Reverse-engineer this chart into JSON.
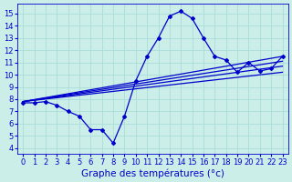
{
  "background_color": "#cceee8",
  "grid_color": "#aaddd8",
  "line_color": "#0000cc",
  "marker": "D",
  "markersize": 2.0,
  "linewidth": 0.9,
  "xlabel": "Graphe des températures (°c)",
  "xlabel_fontsize": 7.5,
  "tick_fontsize": 6.0,
  "xlim": [
    -0.5,
    23.5
  ],
  "ylim": [
    3.5,
    15.8
  ],
  "yticks": [
    4,
    5,
    6,
    7,
    8,
    9,
    10,
    11,
    12,
    13,
    14,
    15
  ],
  "xticks": [
    0,
    1,
    2,
    3,
    4,
    5,
    6,
    7,
    8,
    9,
    10,
    11,
    12,
    13,
    14,
    15,
    16,
    17,
    18,
    19,
    20,
    21,
    22,
    23
  ],
  "main_series": [
    7.7,
    7.7,
    7.8,
    7.5,
    7.0,
    6.6,
    5.5,
    5.5,
    4.4,
    6.6,
    9.5,
    11.5,
    13.0,
    14.8,
    15.2,
    14.6,
    13.0,
    11.5,
    11.2,
    10.2,
    11.0,
    10.3,
    10.5,
    11.5
  ],
  "ref_lines": [
    {
      "x0": 0,
      "y0": 7.8,
      "x1": 23,
      "y1": 11.5
    },
    {
      "x0": 0,
      "y0": 7.8,
      "x1": 23,
      "y1": 11.1
    },
    {
      "x0": 0,
      "y0": 7.8,
      "x1": 23,
      "y1": 10.7
    },
    {
      "x0": 0,
      "y0": 7.8,
      "x1": 23,
      "y1": 10.2
    }
  ]
}
